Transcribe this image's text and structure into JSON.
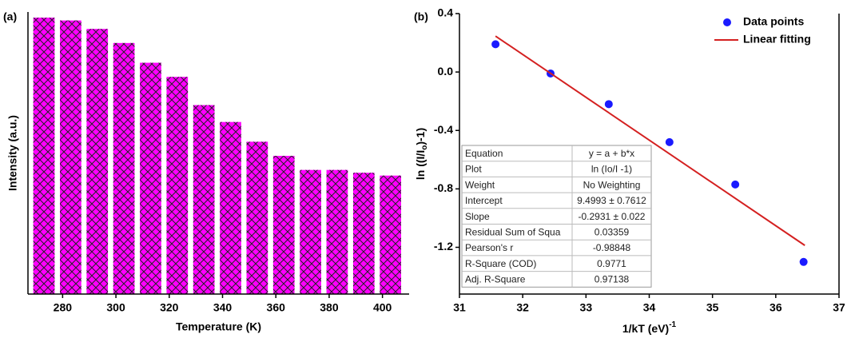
{
  "chart_data": [
    {
      "type": "bar",
      "panel_label": "(a)",
      "x": [
        273,
        283,
        293,
        303,
        313,
        323,
        333,
        343,
        353,
        363,
        373,
        383,
        393,
        403
      ],
      "values": [
        0.98,
        0.97,
        0.94,
        0.89,
        0.82,
        0.77,
        0.67,
        0.61,
        0.54,
        0.49,
        0.44,
        0.44,
        0.43,
        0.42
      ],
      "color": "#ff00ff",
      "hatch": "crosshatch",
      "xlim": [
        267,
        410
      ],
      "xticks": [
        280,
        300,
        320,
        340,
        360,
        380,
        400
      ],
      "ylim": [
        0,
        1
      ],
      "xlabel": "Temperature (K)",
      "ylabel": "Intensity (a.u.)"
    },
    {
      "type": "scatter",
      "panel_label": "(b)",
      "series": [
        {
          "name": "Data points",
          "color": "#1a1aff",
          "x": [
            31.57,
            32.44,
            33.36,
            34.32,
            35.36,
            36.44
          ],
          "values": [
            0.19,
            -0.01,
            -0.22,
            -0.48,
            -0.77,
            -1.3
          ]
        },
        {
          "name": "Linear fitting",
          "color": "#d42020",
          "type": "line",
          "x": [
            31.57,
            36.46
          ],
          "values": [
            0.246,
            -1.187
          ]
        }
      ],
      "xlim": [
        31,
        37
      ],
      "xticks": [
        31,
        32,
        33,
        34,
        35,
        36,
        37
      ],
      "ylim": [
        -1.52,
        0.4
      ],
      "yticks": [
        -1.2,
        -0.8,
        -0.4,
        {
          "value": 0,
          "label": "0.0"
        },
        0.4
      ],
      "xlabel": [
        "1/kT (eV)",
        "-1"
      ],
      "ylabel": [
        "ln ((I/I",
        "o",
        ")-1)"
      ],
      "legend": "upper right",
      "table": [
        [
          "Equation",
          "y = a + b*x"
        ],
        [
          "Plot",
          "ln (Io/I -1)"
        ],
        [
          "Weight",
          "No Weighting"
        ],
        [
          "Intercept",
          "9.4993 ± 0.7612"
        ],
        [
          "Slope",
          "-0.2931 ± 0.022"
        ],
        [
          "Residual Sum of Squa",
          "0.03359"
        ],
        [
          "Pearson's r",
          "-0.98848"
        ],
        [
          "R-Square (COD)",
          "0.9771"
        ],
        [
          "Adj. R-Square",
          "0.97138"
        ]
      ]
    }
  ]
}
